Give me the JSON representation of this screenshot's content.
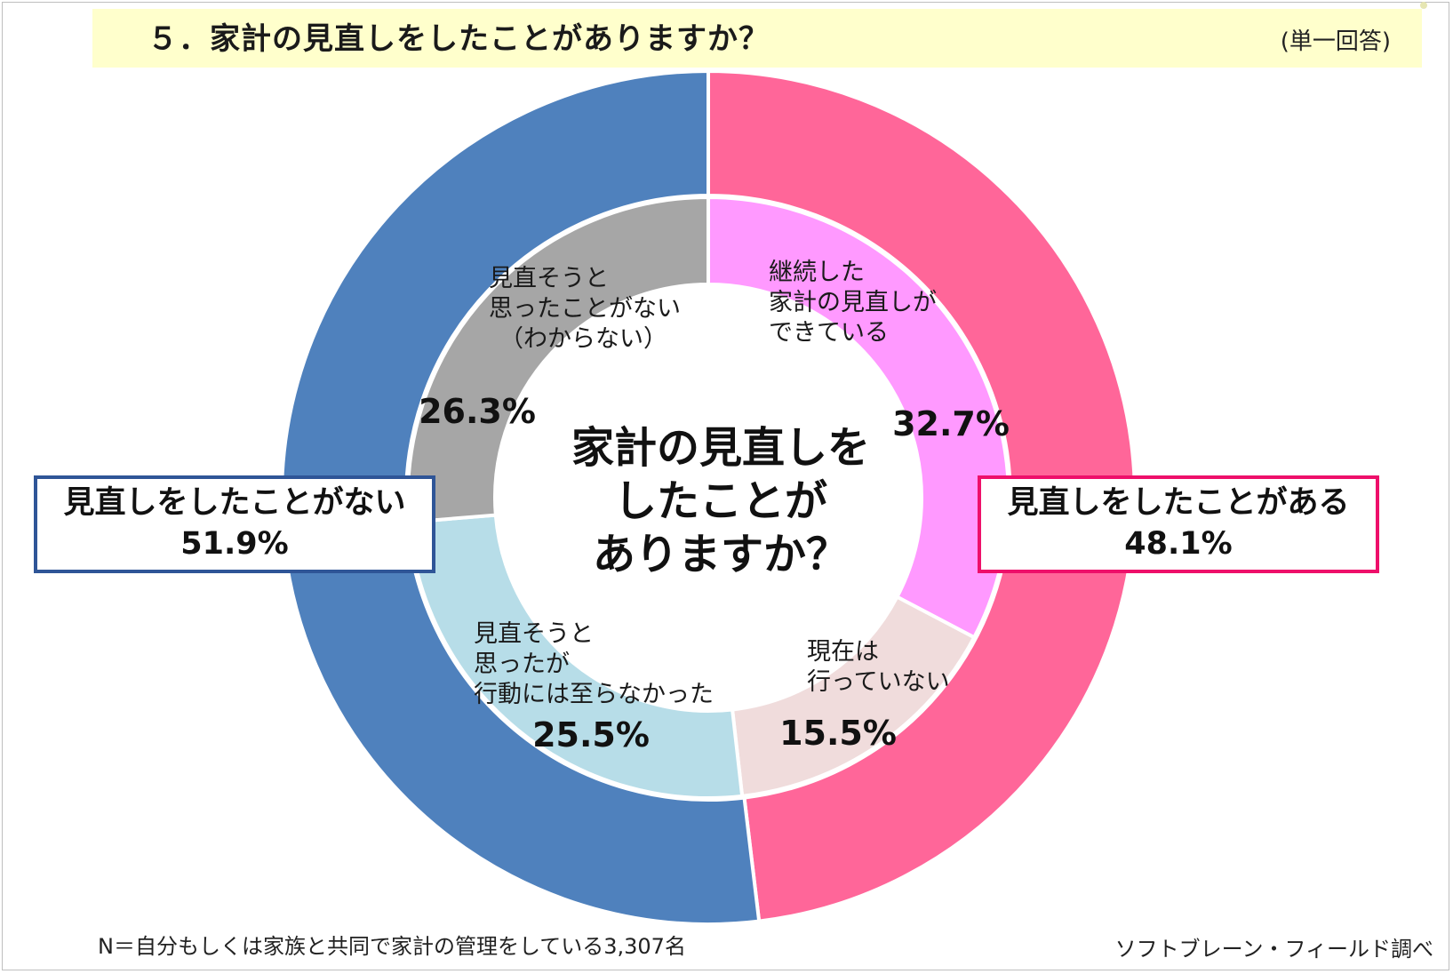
{
  "header": {
    "title": "５．家計の見直しをしたことがありますか？",
    "answer_type": "(単一回答)"
  },
  "chart_data": {
    "type": "pie",
    "title": "５．家計の見直しをしたことがありますか？",
    "center_label": [
      "家計の見直しを",
      "したことが",
      "ありますか？"
    ],
    "outer_ring": [
      {
        "name": "見直しをしたことがある",
        "value": 48.1,
        "value_label": "48.1%",
        "color": "#ff6699"
      },
      {
        "name": "見直しをしたことがない",
        "value": 51.9,
        "value_label": "51.9%",
        "color": "#4f81bd"
      }
    ],
    "inner_ring": [
      {
        "label_lines": [
          "継続した",
          "家計の見直しが",
          "できている"
        ],
        "value": 32.7,
        "value_label": "32.7%",
        "color": "#ff99ff"
      },
      {
        "label_lines": [
          "現在は",
          "行っていない"
        ],
        "value": 15.5,
        "value_label": "15.5%",
        "color": "#f0dcdc"
      },
      {
        "label_lines": [
          "見直そうと",
          "思ったが",
          "行動には至らなかった"
        ],
        "value": 25.5,
        "value_label": "25.5%",
        "color": "#b7dde8"
      },
      {
        "label_lines": [
          "見直そうと",
          "思ったことがない",
          "（わからない）"
        ],
        "value": 26.3,
        "value_label": "26.3%",
        "color": "#a6a6a6"
      }
    ]
  },
  "callouts": {
    "left_label": "見直しをしたことがない",
    "left_value": "51.9%",
    "right_label": "見直しをしたことがある",
    "right_value": "48.1%",
    "left_border_color": "#2f5597",
    "right_border_color": "#ee0f6a"
  },
  "footer": {
    "note": "N＝自分もしくは家族と共同で家計の管理をしている3,307名",
    "source": "ソフトブレーン・フィールド調べ"
  }
}
